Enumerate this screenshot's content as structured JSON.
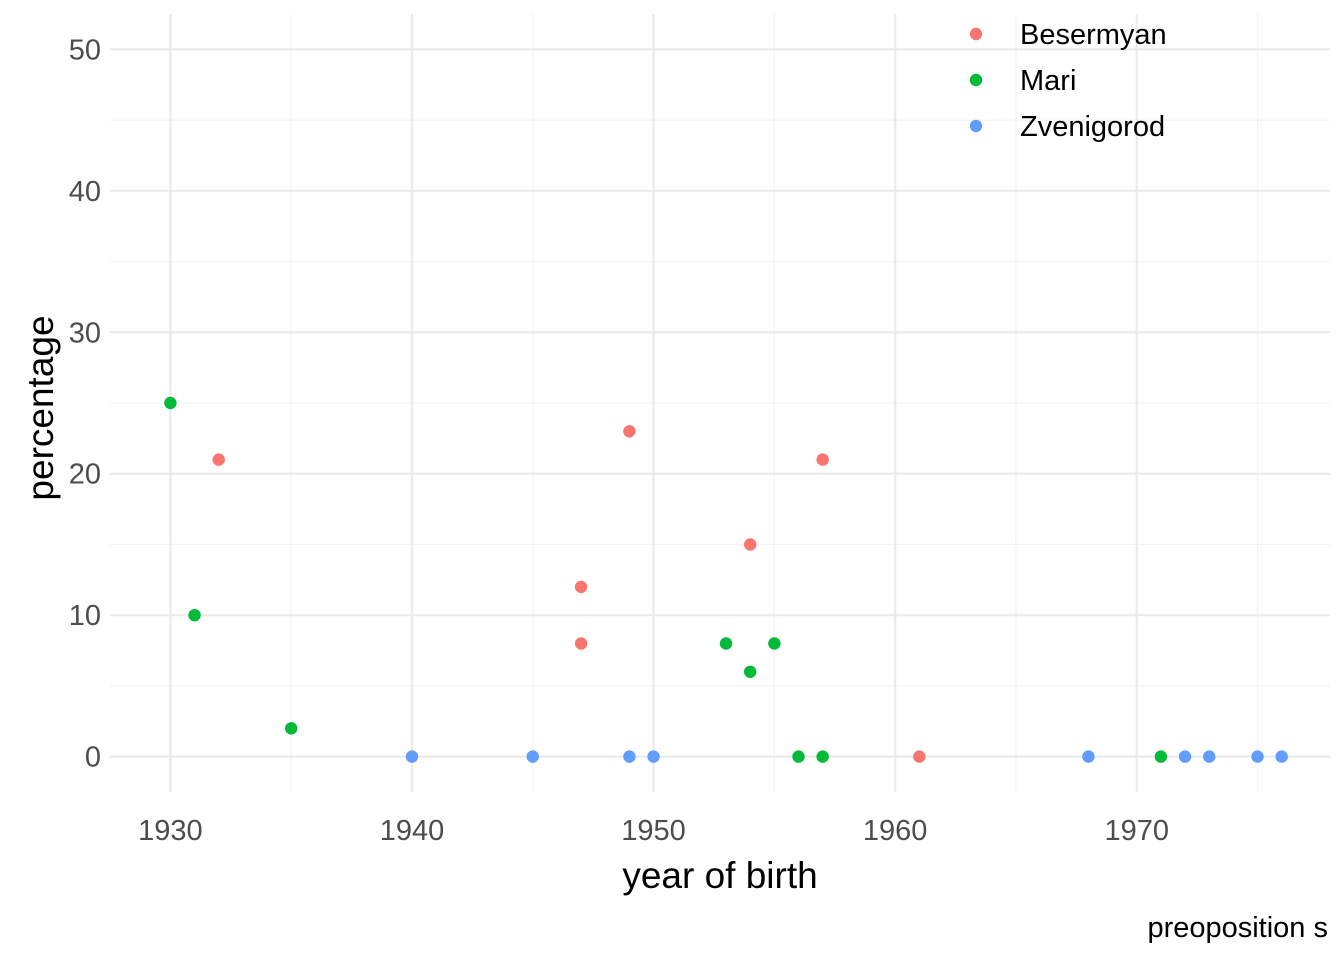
{
  "chart_data": {
    "type": "scatter",
    "xlabel": "year of birth",
    "ylabel": "percentage",
    "caption": "preoposition s",
    "xlim": [
      1927.5,
      1978
    ],
    "ylim": [
      -2.5,
      52.5
    ],
    "x_ticks": [
      1930,
      1940,
      1950,
      1960,
      1970
    ],
    "y_ticks": [
      0,
      10,
      20,
      30,
      40,
      50
    ],
    "x_tick_labels": [
      "1930",
      "1940",
      "1950",
      "1960",
      "1970"
    ],
    "y_tick_labels": [
      "0",
      "10",
      "20",
      "30",
      "40",
      "50"
    ],
    "grid": true,
    "legend_position": "top-right",
    "series": [
      {
        "name": "Besermyan",
        "color": "#F8766D",
        "points": [
          [
            1932,
            21
          ],
          [
            1947,
            12
          ],
          [
            1947,
            8
          ],
          [
            1949,
            23
          ],
          [
            1954,
            15
          ],
          [
            1957,
            21
          ],
          [
            1961,
            0
          ]
        ]
      },
      {
        "name": "Mari",
        "color": "#00BA38",
        "points": [
          [
            1930,
            25
          ],
          [
            1931,
            10
          ],
          [
            1935,
            2
          ],
          [
            1953,
            8
          ],
          [
            1954,
            6
          ],
          [
            1955,
            8
          ],
          [
            1956,
            0
          ],
          [
            1957,
            0
          ],
          [
            1971,
            0
          ]
        ]
      },
      {
        "name": "Zvenigorod",
        "color": "#619CFF",
        "points": [
          [
            1940,
            0
          ],
          [
            1945,
            0
          ],
          [
            1949,
            0
          ],
          [
            1950,
            0
          ],
          [
            1968,
            0
          ],
          [
            1972,
            0
          ],
          [
            1973,
            0
          ],
          [
            1975,
            0
          ],
          [
            1976,
            0
          ]
        ]
      }
    ]
  }
}
